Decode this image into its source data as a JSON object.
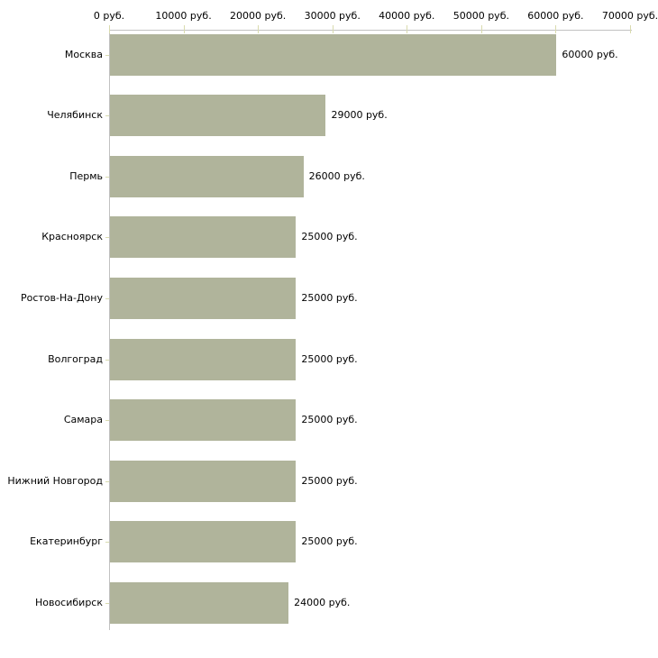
{
  "chart_data": {
    "type": "bar",
    "orientation": "horizontal",
    "title": "",
    "categories": [
      "Москва",
      "Челябинск",
      "Пермь",
      "Красноярск",
      "Ростов-На-Дону",
      "Волгоград",
      "Самара",
      "Нижний Новгород",
      "Екатеринбург",
      "Новосибирск"
    ],
    "values": [
      60000,
      29000,
      26000,
      25000,
      25000,
      25000,
      25000,
      25000,
      25000,
      24000
    ],
    "value_labels": [
      "60000 руб.",
      "29000 руб.",
      "26000 руб.",
      "25000 руб.",
      "25000 руб.",
      "25000 руб.",
      "25000 руб.",
      "25000 руб.",
      "25000 руб.",
      "24000 руб."
    ],
    "x_axis": {
      "position": "top",
      "min": 0,
      "max": 70000,
      "ticks": [
        0,
        10000,
        20000,
        30000,
        40000,
        50000,
        60000,
        70000
      ],
      "tick_labels": [
        "0 руб.",
        "10000 руб.",
        "20000 руб.",
        "30000 руб.",
        "40000 руб.",
        "50000 руб.",
        "60000 руб.",
        "70000 руб."
      ]
    },
    "legend": "none",
    "grid": "off",
    "colors": {
      "bar": "#b0b49b",
      "axis_line": "#c1c1c1",
      "tick_mark": "#d9dbae",
      "text": "#000000",
      "background": "#ffffff"
    }
  }
}
